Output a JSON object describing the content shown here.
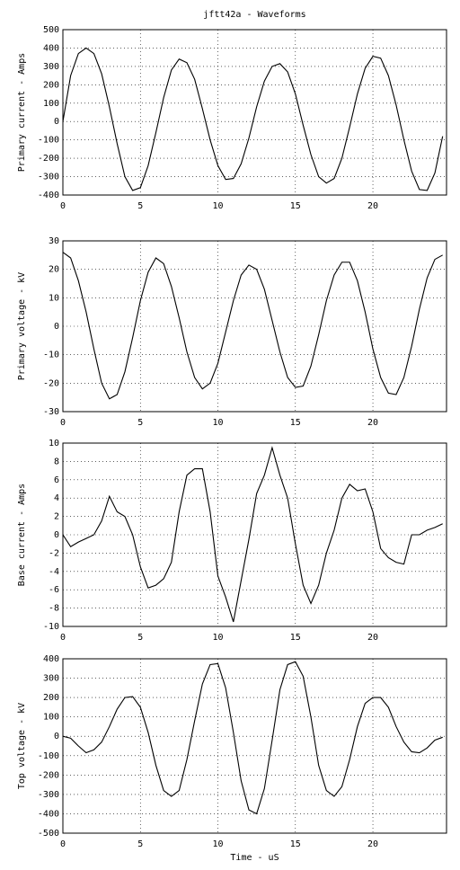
{
  "chart_data": [
    {
      "type": "line",
      "title": "jftt42a - Waveforms",
      "ylabel": "Primary current - Amps",
      "color": "#000000",
      "grid": true,
      "xlim": [
        0,
        24.75
      ],
      "xticks": [
        0,
        5,
        10,
        15,
        20
      ],
      "ylim": [
        -400,
        500
      ],
      "yticks": [
        -400,
        -300,
        -200,
        -100,
        0,
        100,
        200,
        300,
        400,
        500
      ],
      "x": [
        0,
        0.5,
        1,
        1.5,
        2,
        2.5,
        3,
        3.5,
        4,
        4.5,
        5,
        5.5,
        6,
        6.5,
        7,
        7.5,
        8,
        8.5,
        9,
        9.5,
        10,
        10.5,
        11,
        11.5,
        12,
        12.5,
        13,
        13.5,
        14,
        14.5,
        15,
        15.5,
        16,
        16.5,
        17,
        17.5,
        18,
        18.5,
        19,
        19.5,
        20,
        20.5,
        21,
        21.5,
        22,
        22.5,
        23,
        23.5,
        24,
        24.5
      ],
      "values": [
        0,
        250,
        370,
        400,
        370,
        260,
        80,
        -120,
        -300,
        -375,
        -360,
        -240,
        -60,
        130,
        280,
        340,
        320,
        230,
        70,
        -100,
        -240,
        -315,
        -310,
        -230,
        -90,
        80,
        220,
        300,
        315,
        270,
        150,
        -20,
        -180,
        -300,
        -335,
        -310,
        -200,
        -30,
        150,
        290,
        355,
        345,
        250,
        90,
        -100,
        -270,
        -370,
        -375,
        -280,
        -80
      ]
    },
    {
      "type": "line",
      "ylabel": "Primary voltage - kV",
      "color": "#000000",
      "grid": true,
      "xlim": [
        0,
        24.75
      ],
      "xticks": [
        0,
        5,
        10,
        15,
        20
      ],
      "ylim": [
        -30,
        30
      ],
      "yticks": [
        -30,
        -20,
        -10,
        0,
        10,
        20,
        30
      ],
      "x": [
        0,
        0.5,
        1,
        1.5,
        2,
        2.5,
        3,
        3.5,
        4,
        4.5,
        5,
        5.5,
        6,
        6.5,
        7,
        7.5,
        8,
        8.5,
        9,
        9.5,
        10,
        10.5,
        11,
        11.5,
        12,
        12.5,
        13,
        13.5,
        14,
        14.5,
        15,
        15.5,
        16,
        16.5,
        17,
        17.5,
        18,
        18.5,
        19,
        19.5,
        20,
        20.5,
        21,
        21.5,
        22,
        22.5,
        23,
        23.5,
        24,
        24.5
      ],
      "values": [
        26,
        24,
        16,
        5,
        -8,
        -20,
        -25.5,
        -24,
        -16,
        -4,
        9,
        19,
        24,
        22,
        14,
        3,
        -9,
        -18,
        -22,
        -20,
        -13,
        -2,
        9,
        18,
        21.5,
        20,
        13,
        2,
        -9,
        -18,
        -21.5,
        -21,
        -14,
        -3,
        9,
        18,
        22.5,
        22.5,
        16,
        5,
        -8,
        -18,
        -23.5,
        -24,
        -18,
        -7,
        6,
        17,
        23.5,
        25
      ]
    },
    {
      "type": "line",
      "ylabel": "Base current - Amps",
      "color": "#000000",
      "grid": true,
      "xlim": [
        0,
        24.75
      ],
      "xticks": [
        0,
        5,
        10,
        15,
        20
      ],
      "ylim": [
        -10,
        10
      ],
      "yticks": [
        -10,
        -8,
        -6,
        -4,
        -2,
        0,
        2,
        4,
        6,
        8,
        10
      ],
      "x": [
        0,
        0.5,
        1,
        1.5,
        2,
        2.5,
        3,
        3.5,
        4,
        4.5,
        5,
        5.5,
        6,
        6.5,
        7,
        7.5,
        8,
        8.5,
        9,
        9.5,
        10,
        10.5,
        11,
        11.5,
        12,
        12.5,
        13,
        13.5,
        14,
        14.5,
        15,
        15.5,
        16,
        16.5,
        17,
        17.5,
        18,
        18.5,
        19,
        19.5,
        20,
        20.5,
        21,
        21.5,
        22,
        22.5,
        23,
        23.5,
        24,
        24.5
      ],
      "values": [
        0,
        -1.3,
        -0.8,
        -0.4,
        0,
        1.5,
        4.2,
        2.5,
        2,
        0,
        -3.5,
        -5.8,
        -5.5,
        -4.8,
        -3,
        2.5,
        6.5,
        7.2,
        7.2,
        2.5,
        -4.5,
        -6.8,
        -9.5,
        -5,
        -0.5,
        4.5,
        6.5,
        9.5,
        6.5,
        4,
        -1,
        -5.5,
        -7.5,
        -5.5,
        -2,
        0.5,
        4,
        5.5,
        4.8,
        5,
        2.5,
        -1.5,
        -2.5,
        -3,
        -3.2,
        0,
        0,
        0.5,
        0.8,
        1.2
      ]
    },
    {
      "type": "line",
      "ylabel": "Top voltage - kV",
      "xlabel": "Time - uS",
      "color": "#000000",
      "grid": true,
      "xlim": [
        0,
        24.75
      ],
      "xticks": [
        0,
        5,
        10,
        15,
        20
      ],
      "ylim": [
        -500,
        400
      ],
      "yticks": [
        -500,
        -400,
        -300,
        -200,
        -100,
        0,
        100,
        200,
        300,
        400
      ],
      "x": [
        0,
        0.5,
        1,
        1.5,
        2,
        2.5,
        3,
        3.5,
        4,
        4.5,
        5,
        5.5,
        6,
        6.5,
        7,
        7.5,
        8,
        8.5,
        9,
        9.5,
        10,
        10.5,
        11,
        11.5,
        12,
        12.5,
        13,
        13.5,
        14,
        14.5,
        15,
        15.5,
        16,
        16.5,
        17,
        17.5,
        18,
        18.5,
        19,
        19.5,
        20,
        20.5,
        21,
        21.5,
        22,
        22.5,
        23,
        23.5,
        24,
        24.5
      ],
      "values": [
        0,
        -10,
        -50,
        -85,
        -70,
        -30,
        50,
        140,
        200,
        205,
        150,
        20,
        -150,
        -280,
        -310,
        -280,
        -120,
        80,
        270,
        370,
        375,
        250,
        20,
        -230,
        -380,
        -400,
        -270,
        -20,
        240,
        370,
        385,
        310,
        100,
        -150,
        -280,
        -310,
        -260,
        -120,
        50,
        170,
        200,
        200,
        150,
        50,
        -30,
        -80,
        -85,
        -60,
        -20,
        -5
      ]
    }
  ]
}
